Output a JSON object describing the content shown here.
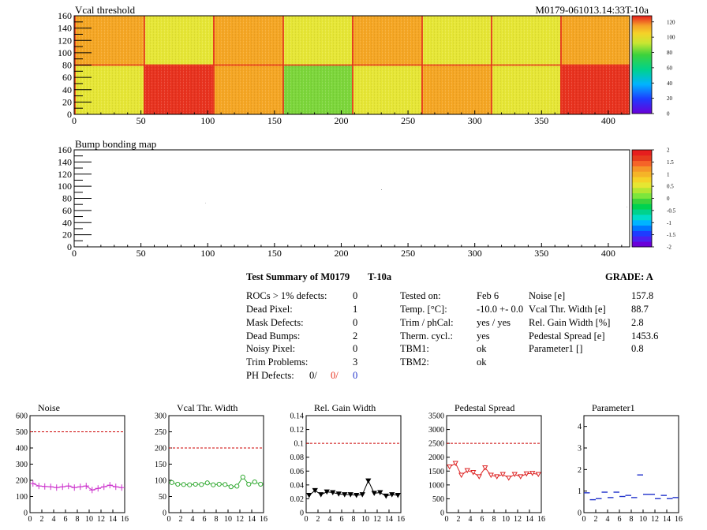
{
  "header": {
    "vcal_title": "Vcal threshold",
    "module_id": "M0179-061013.14:33T-10a",
    "bump_title": "Bump bonding map"
  },
  "maps": {
    "x_ticks": [
      "0",
      "50",
      "100",
      "150",
      "200",
      "250",
      "300",
      "350",
      "400"
    ],
    "y_ticks": [
      "0",
      "20",
      "40",
      "60",
      "80",
      "100",
      "120",
      "140",
      "160"
    ],
    "vcal_palette_ticks": [
      "0",
      "20",
      "40",
      "60",
      "80",
      "100",
      "120"
    ],
    "bump_palette_ticks": [
      "-2",
      "-1.5",
      "-1",
      "-0.5",
      "0",
      "0.5",
      "1",
      "1.5",
      "2"
    ]
  },
  "colors": {
    "map_red": "#e8321e",
    "map_orange": "#f5a623",
    "map_yellow": "#e6e635",
    "map_green": "#7cd63a",
    "noise": "#cc33cc",
    "vcal_width": "#33aa33",
    "gain_width": "#000000",
    "pedestal": "#dd2222",
    "param1": "#2233cc",
    "ref_line": "#cc0000"
  },
  "summary": {
    "title": "Test Summary of M0179",
    "temp_tag": "T-10a",
    "grade": "GRADE:  A",
    "defects": [
      {
        "label": "ROCs > 1% defects:",
        "value": "0"
      },
      {
        "label": "Dead Pixel:",
        "value": "1"
      },
      {
        "label": "Mask Defects:",
        "value": "0"
      },
      {
        "label": "Dead Bumps:",
        "value": "2"
      },
      {
        "label": "Noisy Pixel:",
        "value": "0"
      },
      {
        "label": "Trim Problems:",
        "value": "3"
      }
    ],
    "ph_defects": {
      "label": "PH Defects:",
      "v1": "0/",
      "v2": "0/",
      "v3": "0"
    },
    "conditions": [
      {
        "label": "Tested on:",
        "value": "Feb 6"
      },
      {
        "label": "Temp. [°C]:",
        "value": "-10.0 +- 0.0"
      },
      {
        "label": "Trim / phCal:",
        "value": "yes / yes"
      },
      {
        "label": "Therm. cycl.:",
        "value": "yes"
      },
      {
        "label": "TBM1:",
        "value": "ok"
      },
      {
        "label": "TBM2:",
        "value": "ok"
      }
    ],
    "results": [
      {
        "label": "Noise [e]",
        "value": "157.8"
      },
      {
        "label": "Vcal Thr. Width [e]",
        "value": "88.7"
      },
      {
        "label": "Rel. Gain Width [%]",
        "value": "2.8"
      },
      {
        "label": "Pedestal Spread [e]",
        "value": "1453.6"
      },
      {
        "label": "Parameter1 []",
        "value": "0.8"
      }
    ]
  },
  "chart_data": [
    {
      "type": "line",
      "title": "Noise",
      "x": [
        0,
        1,
        2,
        3,
        4,
        5,
        6,
        7,
        8,
        9,
        10,
        11,
        12,
        13,
        14,
        15
      ],
      "values": [
        180,
        165,
        162,
        160,
        155,
        160,
        165,
        155,
        160,
        165,
        140,
        150,
        160,
        170,
        160,
        155
      ],
      "xlim": [
        0,
        16
      ],
      "ylim": [
        0,
        600
      ],
      "yticks": [
        "0",
        "100",
        "200",
        "300",
        "400",
        "500",
        "600"
      ],
      "xticks": [
        "0",
        "2",
        "4",
        "6",
        "8",
        "10",
        "12",
        "14",
        "16"
      ],
      "ref": 500,
      "marker": "cross",
      "color_key": "noise"
    },
    {
      "type": "line",
      "title": "Vcal Thr. Width",
      "x": [
        0,
        1,
        2,
        3,
        4,
        5,
        6,
        7,
        8,
        9,
        10,
        11,
        12,
        13,
        14,
        15
      ],
      "values": [
        93,
        88,
        87,
        86,
        88,
        87,
        92,
        86,
        88,
        87,
        80,
        82,
        110,
        88,
        95,
        88
      ],
      "xlim": [
        0,
        16
      ],
      "ylim": [
        0,
        300
      ],
      "yticks": [
        "0",
        "50",
        "100",
        "150",
        "200",
        "250",
        "300"
      ],
      "xticks": [
        "0",
        "2",
        "4",
        "6",
        "8",
        "10",
        "12",
        "14",
        "16"
      ],
      "ref": 200,
      "marker": "circle",
      "color_key": "vcal_width"
    },
    {
      "type": "line",
      "title": "Rel. Gain Width",
      "x": [
        0,
        1,
        2,
        3,
        4,
        5,
        6,
        7,
        8,
        9,
        10,
        11,
        12,
        13,
        14,
        15
      ],
      "values": [
        0.025,
        0.032,
        0.026,
        0.03,
        0.029,
        0.027,
        0.026,
        0.026,
        0.025,
        0.026,
        0.046,
        0.028,
        0.029,
        0.024,
        0.026,
        0.025
      ],
      "xlim": [
        0,
        16
      ],
      "ylim": [
        0,
        0.14
      ],
      "yticks": [
        "0",
        "0.02",
        "0.04",
        "0.06",
        "0.08",
        "0.1",
        "0.12",
        "0.14"
      ],
      "xticks": [
        "0",
        "2",
        "4",
        "6",
        "8",
        "10",
        "12",
        "14",
        "16"
      ],
      "ref": 0.1,
      "marker": "triangle",
      "color_key": "gain_width"
    },
    {
      "type": "line",
      "title": "Pedestal Spread",
      "x": [
        0,
        1,
        2,
        3,
        4,
        5,
        6,
        7,
        8,
        9,
        10,
        11,
        12,
        13,
        14,
        15
      ],
      "values": [
        1650,
        1780,
        1350,
        1520,
        1450,
        1300,
        1620,
        1350,
        1300,
        1380,
        1250,
        1380,
        1300,
        1400,
        1420,
        1380
      ],
      "xlim": [
        0,
        16
      ],
      "ylim": [
        0,
        3500
      ],
      "yticks": [
        "0",
        "500",
        "1000",
        "1500",
        "2000",
        "2500",
        "3000",
        "3500"
      ],
      "xticks": [
        "0",
        "2",
        "4",
        "6",
        "8",
        "10",
        "12",
        "14",
        "16"
      ],
      "ref": 2500,
      "marker": "triangle",
      "color_key": "pedestal"
    },
    {
      "type": "scatter",
      "title": "Parameter1",
      "x": [
        0,
        1,
        2,
        3,
        4,
        5,
        6,
        7,
        8,
        9,
        10,
        11,
        12,
        13,
        14,
        15
      ],
      "values": [
        0.92,
        0.6,
        0.65,
        0.95,
        0.7,
        0.95,
        0.75,
        0.8,
        0.7,
        1.75,
        0.85,
        0.85,
        0.65,
        0.8,
        0.65,
        0.7
      ],
      "xlim": [
        0,
        16
      ],
      "ylim": [
        0,
        4.5
      ],
      "yticks": [
        "0",
        "1",
        "2",
        "3",
        "4"
      ],
      "ytick_values": [
        0,
        1,
        2,
        3,
        4
      ],
      "xticks": [
        "0",
        "2",
        "4",
        "6",
        "8",
        "10",
        "12",
        "14",
        "16"
      ],
      "marker": "dash",
      "color_key": "param1"
    }
  ]
}
